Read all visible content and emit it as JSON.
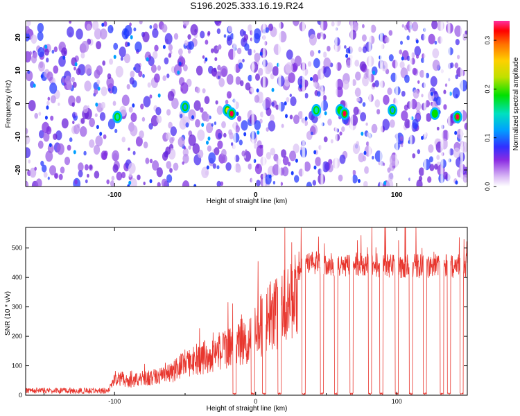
{
  "title": "S196.2025.333.16.19.R24",
  "chart_data": [
    {
      "type": "heatmap",
      "xlabel": "Height of straight line (km)",
      "ylabel": "Frequency (Hz)",
      "xlim": [
        -163,
        150
      ],
      "ylim": [
        -25,
        25
      ],
      "xticks": [
        -100,
        0,
        100
      ],
      "yticks": [
        -20,
        -10,
        0,
        10,
        20
      ],
      "colorbar": {
        "label": "Normalized spectral amplitude",
        "range": [
          0.0,
          0.34
        ],
        "ticks": [
          "0.0",
          "0.1",
          "0.2",
          "0.3"
        ],
        "colors": [
          "#ffffff",
          "#c8a0f0",
          "#7a20e0",
          "#3030ff",
          "#00a0ff",
          "#00e0c0",
          "#00e000",
          "#c0e000",
          "#ffd000",
          "#ff7000",
          "#ff0000",
          "#ff30a0"
        ]
      },
      "hotspots": [
        {
          "x": -98,
          "y": -4,
          "value": 0.15
        },
        {
          "x": -50,
          "y": -1,
          "value": 0.12
        },
        {
          "x": -20,
          "y": -2,
          "value": 0.25
        },
        {
          "x": -17,
          "y": -3,
          "value": 0.34
        },
        {
          "x": 43,
          "y": -2,
          "value": 0.18
        },
        {
          "x": 60,
          "y": -2,
          "value": 0.22
        },
        {
          "x": 63,
          "y": -3,
          "value": 0.34
        },
        {
          "x": 97,
          "y": -2,
          "value": 0.14
        },
        {
          "x": 127,
          "y": -3,
          "value": 0.2
        },
        {
          "x": 143,
          "y": -4,
          "value": 0.34
        }
      ]
    },
    {
      "type": "line",
      "xlabel": "Height of straight line (km)",
      "ylabel": "SNR (10 * v/v)",
      "xlim": [
        -163,
        150
      ],
      "ylim": [
        0,
        570
      ],
      "xticks": [
        -100,
        0,
        100
      ],
      "yticks": [
        0,
        100,
        200,
        300,
        400,
        500
      ],
      "color": "#e8362e",
      "envelope": {
        "x": [
          -163,
          -105,
          -100,
          -95,
          -90,
          -80,
          -70,
          -60,
          -50,
          -40,
          -30,
          -20,
          -15,
          -10,
          -5,
          0,
          5,
          10,
          15,
          20,
          25,
          30,
          35,
          40,
          50,
          60,
          70,
          80,
          90,
          100,
          110,
          120,
          130,
          140,
          150
        ],
        "y": [
          15,
          15,
          60,
          70,
          55,
          70,
          75,
          90,
          130,
          150,
          170,
          190,
          210,
          220,
          240,
          260,
          290,
          320,
          340,
          360,
          400,
          430,
          450,
          460,
          460,
          455,
          460,
          455,
          455,
          450,
          455,
          450,
          455,
          450,
          455
        ]
      },
      "dropouts_x": [
        -15,
        -2,
        6,
        17,
        34,
        47,
        57,
        68,
        81,
        89,
        100,
        110,
        120,
        132,
        137,
        146
      ]
    }
  ]
}
